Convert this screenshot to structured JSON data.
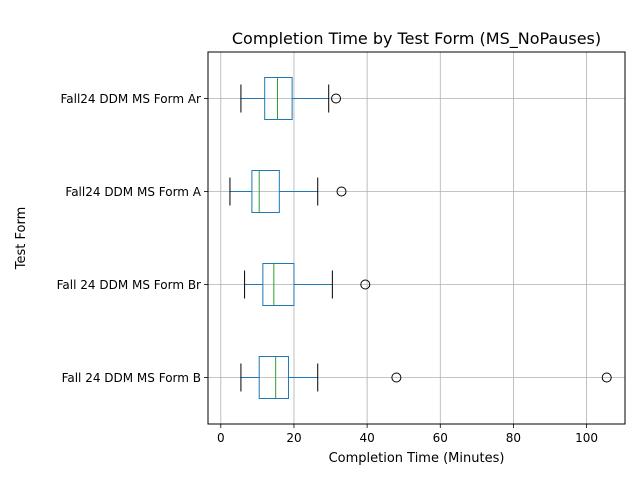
{
  "chart_data": {
    "type": "boxplot",
    "orientation": "horizontal",
    "title": "Completion Time by Test Form (MS_NoPauses)",
    "xlabel": "Completion Time (Minutes)",
    "ylabel": "Test Form",
    "xlim": [
      -3.5,
      110.5
    ],
    "xticks": [
      0,
      20,
      40,
      60,
      80,
      100
    ],
    "grid": true,
    "box_color": "#1f77b4",
    "median_color": "#2ca02c",
    "whisker_color": "#1f77b4",
    "cap_color": "#000000",
    "flier_color": "#000000",
    "categories": [
      "Fall 24 DDM MS Form B",
      "Fall 24 DDM MS Form Br",
      "Fall24 DDM MS Form A",
      "Fall24 DDM MS Form Ar"
    ],
    "boxes": [
      {
        "category": "Fall 24 DDM MS Form B",
        "whisker_low": 5.5,
        "q1": 10.5,
        "median": 15.0,
        "q3": 18.5,
        "whisker_high": 26.5,
        "fliers": [
          48.0,
          105.5
        ]
      },
      {
        "category": "Fall 24 DDM MS Form Br",
        "whisker_low": 6.5,
        "q1": 11.5,
        "median": 14.5,
        "q3": 20.0,
        "whisker_high": 30.5,
        "fliers": [
          39.5
        ]
      },
      {
        "category": "Fall24 DDM MS Form A",
        "whisker_low": 2.5,
        "q1": 8.5,
        "median": 10.5,
        "q3": 16.0,
        "whisker_high": 26.5,
        "fliers": [
          33.0
        ]
      },
      {
        "category": "Fall24 DDM MS Form Ar",
        "whisker_low": 5.5,
        "q1": 12.0,
        "median": 15.5,
        "q3": 19.5,
        "whisker_high": 29.5,
        "fliers": [
          31.5
        ]
      }
    ]
  }
}
